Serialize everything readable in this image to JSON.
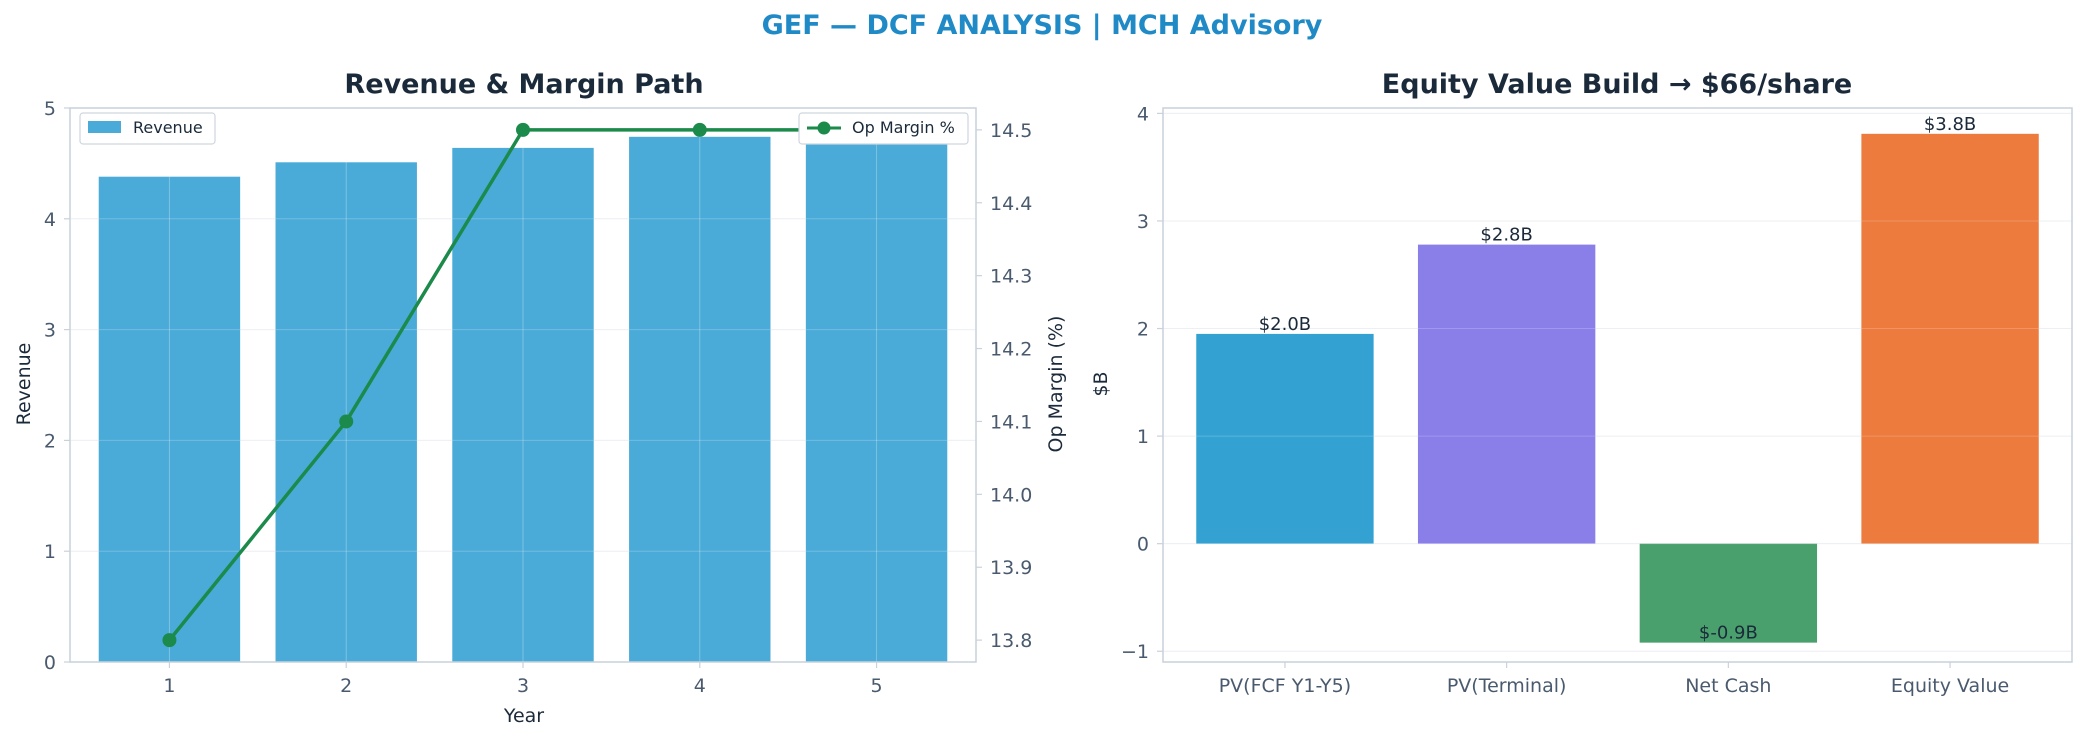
{
  "suptitle": "GEF — DCF ANALYSIS | MCH Advisory",
  "colors": {
    "title": "#1f8ac6",
    "heading": "#1b2a3a",
    "tick": "#4a5a6e",
    "spine": "#c9d1db",
    "grid": "#e8ecf1",
    "revenue_bar": "#4aabd8",
    "op_margin_line": "#1b8a4a"
  },
  "chart_data": [
    {
      "type": "bar",
      "title": "Revenue & Margin Path",
      "xlabel": "Year",
      "ylabel": "Revenue",
      "y2label": "Op Margin (%)",
      "categories": [
        "1",
        "2",
        "3",
        "4",
        "5"
      ],
      "ylim": [
        0,
        5
      ],
      "y2lim": [
        13.77,
        14.53
      ],
      "yticks": [
        0,
        1,
        2,
        3,
        4,
        5
      ],
      "y2ticks": [
        13.8,
        13.9,
        14.0,
        14.1,
        14.2,
        14.3,
        14.4,
        14.5
      ],
      "grid": true,
      "series": [
        {
          "name": "Revenue",
          "type": "bar",
          "axis": "left",
          "values": [
            4.38,
            4.51,
            4.64,
            4.74,
            4.85
          ]
        },
        {
          "name": "Op Margin %",
          "type": "line",
          "axis": "right",
          "values": [
            13.8,
            14.1,
            14.5,
            14.5,
            14.5
          ]
        }
      ],
      "legend": {
        "left_series": "upper-left",
        "right_series": "upper-right"
      }
    },
    {
      "type": "bar",
      "title": "Equity Value Build → $66/share",
      "xlabel": "",
      "ylabel": "$B",
      "categories": [
        "PV(FCF Y1-Y5)",
        "PV(Terminal)",
        "Net Cash",
        "Equity Value"
      ],
      "values": [
        1.95,
        2.78,
        -0.92,
        3.81
      ],
      "data_labels": [
        "$2.0B",
        "$2.8B",
        "$-0.9B",
        "$3.8B"
      ],
      "colors": [
        "#33a2d3",
        "#8a7ee8",
        "#4aa06c",
        "#ec7b3d"
      ],
      "ylim": [
        -1.1,
        4.05
      ],
      "yticks": [
        -1,
        0,
        1,
        2,
        3,
        4
      ],
      "grid": true
    }
  ]
}
